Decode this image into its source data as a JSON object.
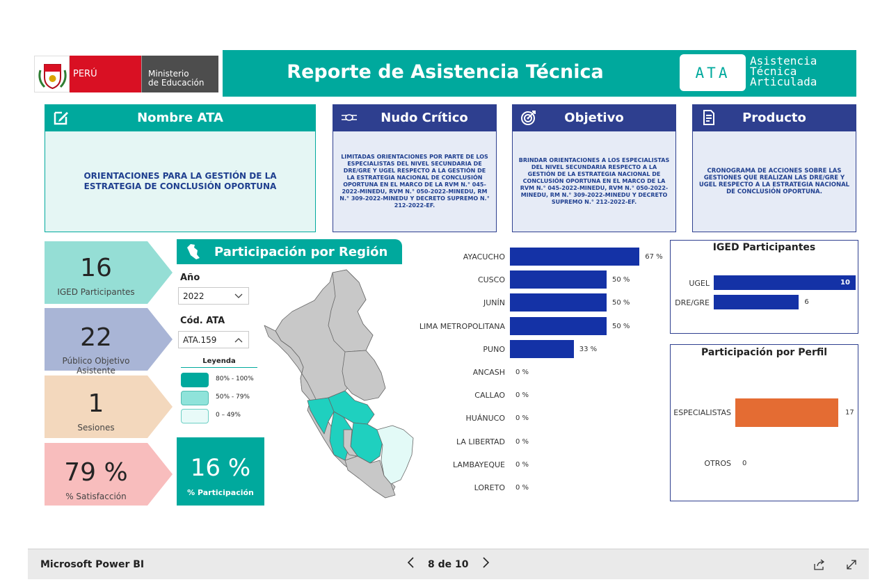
{
  "header": {
    "logo_peru": "PERÚ",
    "logo_ministry_line1": "Ministerio",
    "logo_ministry_line2": "de Educación",
    "title": "Reporte de Asistencia Técnica",
    "ata_badge": "ATA",
    "ata_sub_line1": "Asistencia",
    "ata_sub_line2": "Técnica",
    "ata_sub_line3": "Articulada"
  },
  "cards": {
    "nombre": {
      "title": "Nombre ATA",
      "icon": "edit-icon",
      "text": "ORIENTACIONES PARA LA GESTIÓN DE LA ESTRATEGIA DE CONCLUSIÓN OPORTUNA"
    },
    "nudo": {
      "title": "Nudo Crítico",
      "icon": "hands-icon",
      "text": "LIMITADAS ORIENTACIONES POR PARTE DE LOS ESPECIALISTAS DEL NIVEL SECUNDARIA DE DRE/GRE Y UGEL RESPECTO A LA GESTIÓN DE LA ESTRATEGIA NACIONAL DE CONCLUSIÓN OPORTUNA EN EL MARCO DE LA RVM N.° 045-2022-MINEDU, RVM N.° 050-2022-MINEDU, RM N.° 309-2022-MINEDU Y DECRETO SUPREMO N.° 212-2022-EF."
    },
    "objetivo": {
      "title": "Objetivo",
      "icon": "target-icon",
      "text": "BRINDAR ORIENTACIONES A LOS ESPECIALISTAS DEL NIVEL SECUNDARIA RESPECTO A LA GESTIÓN DE LA ESTRATEGIA NACIONAL DE CONCLUSIÓN OPORTUNA EN EL MARCO DE LA RVM N.° 045-2022-MINEDU, RVM N.° 050-2022-MINEDU, RM N.° 309-2022-MINEDU Y DECRETO SUPREMO N.° 212-2022-EF."
    },
    "producto": {
      "title": "Producto",
      "icon": "document-icon",
      "text": "CRONOGRAMA DE ACCIONES SOBRE LAS GESTIONES QUE REALIZAN LAS DRE/GRE Y UGEL RESPECTO A LA ESTRATEGIA NACIONAL DE CONCLUSIÓN OPORTUNA."
    }
  },
  "kpis": [
    {
      "value": "16",
      "label": "IGED Participantes",
      "color": "#95ded5"
    },
    {
      "value": "22",
      "label": "Público Objetivo Asistente",
      "color": "#a9b5d6"
    },
    {
      "value": "1",
      "label": "Sesiones",
      "color": "#f3d8bd"
    },
    {
      "value": "79 %",
      "label": "% Satisfacción",
      "color": "#f8bdbd"
    }
  ],
  "region": {
    "title": "Participación por Región",
    "year_label": "Año",
    "year_value": "2022",
    "code_label": "Cód. ATA",
    "code_value": "ATA.159",
    "legend_title": "Leyenda",
    "legend": [
      {
        "label": "80% - 100%",
        "color": "#00a99d"
      },
      {
        "label": "50% - 79%",
        "color": "#8fe3da"
      },
      {
        "label": "0 – 49%",
        "color": "#e8faf8"
      }
    ],
    "participation_value": "16 %",
    "participation_label": "% Participación"
  },
  "chart_data": [
    {
      "type": "bar",
      "orientation": "horizontal",
      "categories": [
        "AYACUCHO",
        "CUSCO",
        "JUNÍN",
        "LIMA METROPOLITANA",
        "PUNO",
        "ANCASH",
        "CALLAO",
        "HUÁNUCO",
        "LA LIBERTAD",
        "LAMBAYEQUE",
        "LORETO"
      ],
      "values": [
        67,
        50,
        50,
        50,
        33,
        0,
        0,
        0,
        0,
        0,
        0
      ],
      "value_labels": [
        "67 %",
        "50 %",
        "50 %",
        "50 %",
        "33 %",
        "0 %",
        "0 %",
        "0 %",
        "0 %",
        "0 %",
        "0 %"
      ],
      "xlim": [
        0,
        100
      ],
      "color": "#1432a6"
    },
    {
      "type": "bar",
      "orientation": "horizontal",
      "title": "IGED Participantes",
      "categories": [
        "UGEL",
        "DRE/GRE"
      ],
      "values": [
        10,
        6
      ],
      "value_labels": [
        "10",
        "6"
      ],
      "xlim": [
        0,
        10
      ],
      "color": "#1432a6"
    },
    {
      "type": "bar",
      "orientation": "horizontal",
      "title": "Participación por Perfil",
      "categories": [
        "ESPECIALISTAS",
        "OTROS"
      ],
      "values": [
        17,
        0
      ],
      "value_labels": [
        "17",
        "0"
      ],
      "xlim": [
        0,
        17
      ],
      "color": "#e46c33"
    }
  ],
  "footer": {
    "brand": "Microsoft Power BI",
    "page_indicator": "8 de 10",
    "prev_icon": "chevron-left-icon",
    "next_icon": "chevron-right-icon",
    "share_icon": "share-icon",
    "expand_icon": "expand-icon"
  }
}
